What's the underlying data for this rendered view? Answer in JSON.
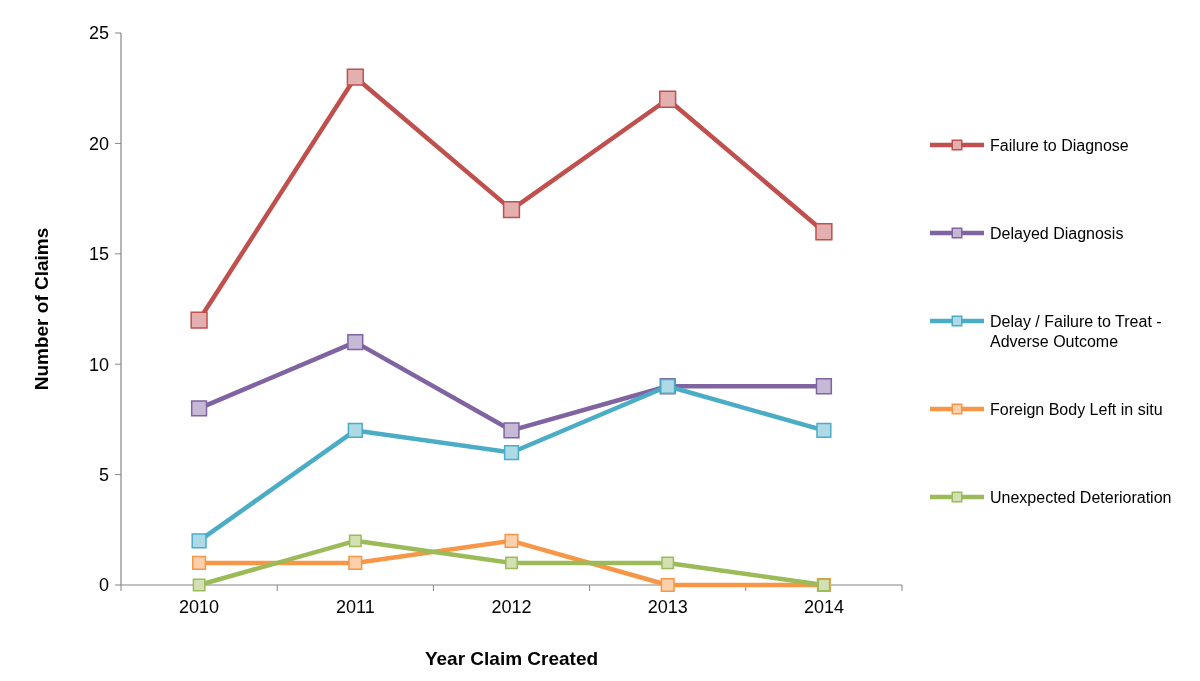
{
  "chart_data": {
    "type": "line",
    "xlabel": "Year Claim Created",
    "ylabel": "Number of Claims",
    "categories": [
      "2010",
      "2011",
      "2012",
      "2013",
      "2014"
    ],
    "series": [
      {
        "name": "Failure to Diagnose",
        "color": "#c0504d",
        "values": [
          12,
          23,
          17,
          22,
          16
        ]
      },
      {
        "name": "Delayed Diagnosis",
        "color": "#8064a2",
        "values": [
          8,
          11,
          7,
          9,
          9
        ]
      },
      {
        "name": "Delay / Failure to Treat - Adverse Outcome",
        "color": "#4bacc6",
        "values": [
          2,
          7,
          6,
          9,
          7
        ]
      },
      {
        "name": "Foreign Body Left in situ",
        "color": "#f79646",
        "values": [
          1,
          1,
          2,
          0,
          0
        ]
      },
      {
        "name": "Unexpected Deterioration",
        "color": "#9bbb59",
        "values": [
          0,
          2,
          1,
          1,
          0
        ]
      }
    ],
    "ylim": [
      0,
      25
    ],
    "yticks": [
      0,
      5,
      10,
      15,
      20,
      25
    ],
    "grid": false,
    "legend": "right",
    "marker": "square",
    "line_style": "solid"
  }
}
